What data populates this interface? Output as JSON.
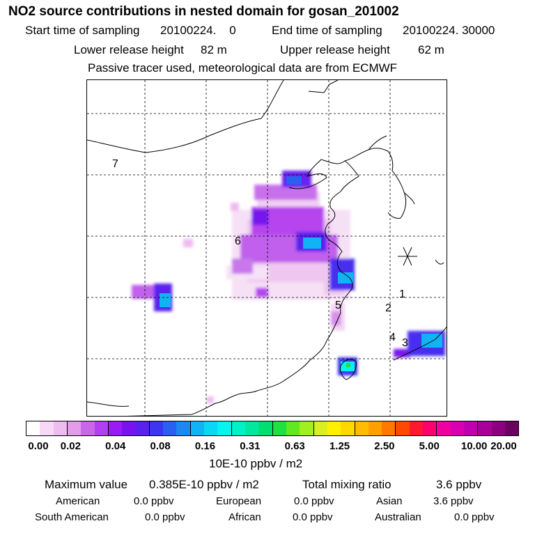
{
  "header": {
    "title": "NO2 source contributions in nested domain for gosan_201002",
    "start_label": "Start time of sampling",
    "start_value": "20100224.    0",
    "end_label": "End time of sampling",
    "end_value": "20100224. 30000",
    "lower_label": "Lower release height",
    "lower_value": "82 m",
    "upper_label": "Upper release height",
    "upper_value": "62 m",
    "note": "Passive tracer used, meteorological data are from ECMWF"
  },
  "map": {
    "region_labels": [
      {
        "id": "7",
        "text": "7"
      },
      {
        "id": "6",
        "text": "6"
      },
      {
        "id": "5",
        "text": "5"
      },
      {
        "id": "1",
        "text": "1"
      },
      {
        "id": "2",
        "text": "2"
      },
      {
        "id": "4",
        "text": "4"
      },
      {
        "id": "3",
        "text": "3"
      }
    ],
    "receptor_marker": "gosan-station-marker"
  },
  "colorbar": {
    "colors": [
      "#ffffff",
      "#f7d9f7",
      "#eebcf0",
      "#e29ce8",
      "#cc66e8",
      "#b23ff0",
      "#9a1cf4",
      "#7a12f0",
      "#5a20ee",
      "#3c36f0",
      "#2a60f2",
      "#1c88f2",
      "#10b4f4",
      "#08d8f4",
      "#04f4f0",
      "#00f0c8",
      "#00e8a0",
      "#00e070",
      "#20e040",
      "#60e820",
      "#a0f020",
      "#d8f020",
      "#fff000",
      "#ffd800",
      "#ffbc00",
      "#ffa000",
      "#ff7800",
      "#ff4800",
      "#ff1830",
      "#ff0070",
      "#f000a0",
      "#d800b0",
      "#c000b0",
      "#a80098",
      "#8c0080",
      "#6c0060"
    ],
    "ticks": [
      "0.00",
      "0.02",
      "0.04",
      "0.08",
      "0.16",
      "0.31",
      "0.63",
      "1.25",
      "2.50",
      "5.00",
      "10.00",
      "20.00"
    ],
    "unit": "10E-10 ppbv / m2"
  },
  "stats": {
    "max_label": "Maximum value",
    "max_value": "0.385E-10 ppbv / m2",
    "total_label": "Total mixing ratio",
    "total_value": "3.6 ppbv",
    "regions": [
      {
        "name": "American",
        "value": "0.0 ppbv"
      },
      {
        "name": "European",
        "value": "0.0 ppbv"
      },
      {
        "name": "Asian",
        "value": "3.6 ppbv"
      },
      {
        "name": "South American",
        "value": "0.0 ppbv"
      },
      {
        "name": "African",
        "value": "0.0 ppbv"
      },
      {
        "name": "Australian",
        "value": "0.0 ppbv"
      }
    ]
  }
}
